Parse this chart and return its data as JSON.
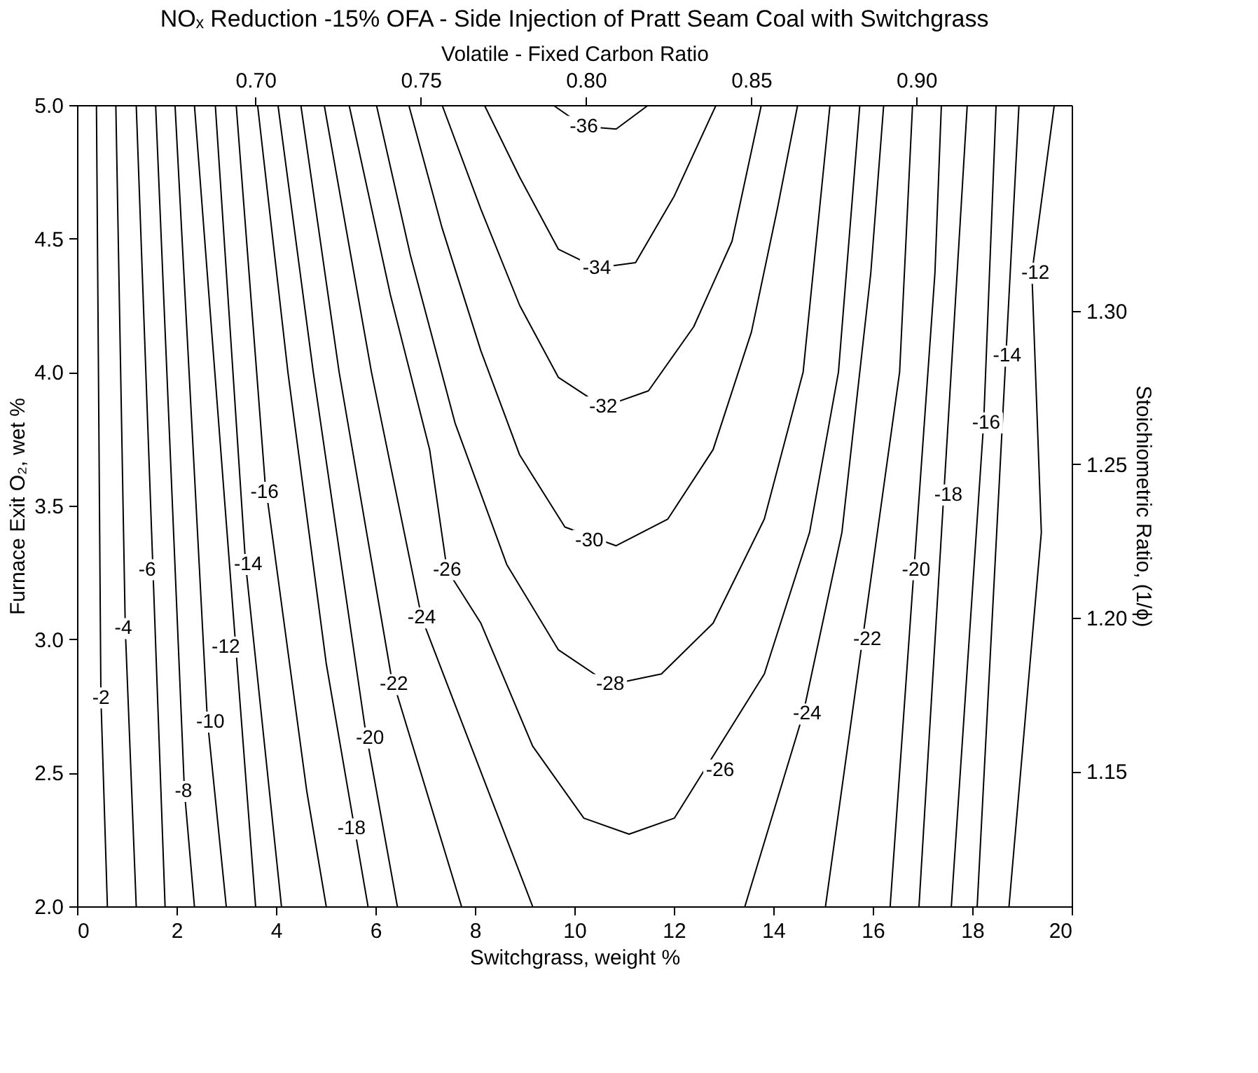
{
  "chart_data": {
    "type": "line",
    "title": "NOₓ Reduction -15% OFA - Side Injection of Pratt Seam Coal with Switchgrass",
    "xlabel": "Switchgrass, weight %",
    "ylabel": "Furnace Exit O₂, wet %",
    "x2label": "Volatile - Fixed Carbon Ratio",
    "y2label": "Stoichiometric Ratio, (1/ϕ)",
    "series": [
      {
        "color": "#000000",
        "x": [
          9.57,
          10.19,
          10.84,
          11.49
        ],
        "values": [
          5.0,
          4.92,
          4.91,
          5.0
        ]
      },
      {
        "color": "#000000",
        "x": [
          8.19,
          8.9,
          9.68,
          10.45,
          11.23,
          12.01,
          12.85
        ],
        "values": [
          5.0,
          4.73,
          4.46,
          4.39,
          4.41,
          4.66,
          5.0
        ]
      },
      {
        "color": "#000000",
        "x": [
          7.34,
          8.12,
          8.9,
          9.68,
          10.58,
          11.49,
          12.4,
          13.17,
          13.76
        ],
        "values": [
          5.0,
          4.61,
          4.25,
          3.98,
          3.87,
          3.93,
          4.17,
          4.49,
          5.0
        ]
      },
      {
        "color": "#000000",
        "x": [
          6.67,
          7.34,
          8.12,
          8.9,
          9.81,
          10.84,
          11.88,
          12.79,
          13.56,
          14.08,
          14.49
        ],
        "values": [
          5.0,
          4.54,
          4.08,
          3.69,
          3.42,
          3.35,
          3.45,
          3.71,
          4.15,
          4.61,
          5.0
        ]
      },
      {
        "color": "#000000",
        "x": [
          6.02,
          6.7,
          7.6,
          8.64,
          9.68,
          10.72,
          11.75,
          12.79,
          13.82,
          14.6,
          15.14
        ],
        "values": [
          5.0,
          4.44,
          3.81,
          3.28,
          2.96,
          2.83,
          2.87,
          3.06,
          3.45,
          4.0,
          5.0
        ]
      },
      {
        "color": "#000000",
        "x": [
          5.47,
          6.3,
          7.09,
          7.44,
          8.12,
          9.16,
          10.19,
          11.1,
          12.01,
          13.82,
          14.73,
          15.31,
          15.74
        ],
        "values": [
          5.0,
          4.29,
          3.71,
          3.26,
          3.06,
          2.6,
          2.33,
          2.27,
          2.33,
          2.87,
          3.4,
          4.0,
          5.0
        ]
      },
      {
        "color": "#000000",
        "x": [
          4.97,
          5.92,
          6.93,
          9.16,
          null,
          13.43,
          14.6,
          15.38,
          15.96,
          16.22
        ],
        "values": [
          5.0,
          4.0,
          3.08,
          2.0,
          null,
          2.0,
          2.72,
          3.4,
          4.37,
          5.0
        ]
      },
      {
        "color": "#000000",
        "x": [
          4.5,
          5.27,
          6.31,
          7.73,
          null,
          15.05,
          16.54,
          16.8
        ],
        "values": [
          5.0,
          4.0,
          2.87,
          2.0,
          null,
          2.0,
          4.0,
          5.0
        ]
      },
      {
        "color": "#000000",
        "x": [
          4.04,
          4.75,
          5.79,
          6.44,
          null,
          16.35,
          17.25,
          17.38
        ],
        "values": [
          5.0,
          4.0,
          2.67,
          2.0,
          null,
          2.0,
          4.37,
          5.0
        ]
      },
      {
        "color": "#000000",
        "x": [
          3.63,
          4.24,
          5.01,
          5.85,
          null,
          16.93,
          17.9
        ],
        "values": [
          5.0,
          4.0,
          2.91,
          2.0,
          null,
          2.0,
          5.0
        ]
      },
      {
        "color": "#000000",
        "x": [
          3.2,
          3.78,
          4.62,
          5.01,
          null,
          17.58,
          18.23,
          18.48
        ],
        "values": [
          5.0,
          3.59,
          2.43,
          2.0,
          null,
          2.0,
          3.81,
          5.0
        ]
      },
      {
        "color": "#000000",
        "x": [
          2.78,
          3.39,
          4.11,
          null,
          18.1,
          18.94
        ],
        "values": [
          5.0,
          3.28,
          2.0,
          null,
          2.0,
          5.0
        ]
      },
      {
        "color": "#000000",
        "x": [
          2.36,
          3.59,
          null,
          18.74,
          19.39,
          19.2,
          19.65
        ],
        "values": [
          5.0,
          2.0,
          null,
          2.0,
          3.4,
          4.37,
          5.0
        ]
      },
      {
        "color": "#000000",
        "x": [
          1.97,
          2.62,
          3.0
        ],
        "values": [
          5.0,
          2.7,
          2.0
        ]
      },
      {
        "color": "#000000",
        "x": [
          1.58,
          2.16,
          2.36
        ],
        "values": [
          5.0,
          2.43,
          2.0
        ]
      },
      {
        "color": "#000000",
        "x": [
          1.19,
          1.77
        ],
        "values": [
          5.0,
          2.0
        ]
      },
      {
        "color": "#000000",
        "x": [
          0.78,
          0.97,
          1.19
        ],
        "values": [
          5.0,
          3.04,
          2.0
        ]
      },
      {
        "color": "#000000",
        "x": [
          0.39,
          0.48,
          0.61
        ],
        "values": [
          5.0,
          2.78,
          2.0
        ]
      }
    ],
    "line_style": "solid",
    "marker": "none",
    "grid": false,
    "xlim": [
      0,
      20
    ],
    "xticks": [
      0,
      2,
      4,
      6,
      8,
      10,
      12,
      14,
      16,
      18,
      20
    ],
    "ylim": [
      2.0,
      5.0
    ],
    "yticks": [
      {
        "value": 2.0,
        "label": "2.0"
      },
      {
        "value": 2.5,
        "label": "2.5"
      },
      {
        "value": 3.0,
        "label": "3.0"
      },
      {
        "value": 3.5,
        "label": "3.5"
      },
      {
        "value": 4.0,
        "label": "4.0"
      },
      {
        "value": 4.5,
        "label": "4.5"
      },
      {
        "value": 5.0,
        "label": "5.0"
      }
    ],
    "x2lim": [
      0.646,
      0.947
    ],
    "x2ticks": [
      {
        "value": 0.7,
        "label": "0.70"
      },
      {
        "value": 0.75,
        "label": "0.75"
      },
      {
        "value": 0.8,
        "label": "0.80"
      },
      {
        "value": 0.85,
        "label": "0.85"
      },
      {
        "value": 0.9,
        "label": "0.90"
      }
    ],
    "y2lim": [
      1.106,
      1.367
    ],
    "y2ticks": [
      1.15,
      {
        "value": 1.2,
        "label": "1.20"
      },
      1.25,
      {
        "value": 1.3,
        "label": "1.30"
      }
    ],
    "annotations": [
      {
        "text": "-36",
        "x": 10.19,
        "y": 4.92
      },
      {
        "text": "-34",
        "x": 10.45,
        "y": 4.39
      },
      {
        "text": "-32",
        "x": 10.58,
        "y": 3.87
      },
      {
        "text": "-30",
        "x": 10.3,
        "y": 3.37
      },
      {
        "text": "-28",
        "x": 10.72,
        "y": 2.83
      },
      {
        "text": "-26",
        "x": 7.44,
        "y": 3.26
      },
      {
        "text": "-26",
        "x": 12.93,
        "y": 2.51
      },
      {
        "text": "-24",
        "x": 6.93,
        "y": 3.08
      },
      {
        "text": "-24",
        "x": 14.68,
        "y": 2.72
      },
      {
        "text": "-22",
        "x": 6.37,
        "y": 2.83
      },
      {
        "text": "-22",
        "x": 15.89,
        "y": 3.0
      },
      {
        "text": "-20",
        "x": 5.89,
        "y": 2.63
      },
      {
        "text": "-20",
        "x": 16.87,
        "y": 3.26
      },
      {
        "text": "-18",
        "x": 5.52,
        "y": 2.29
      },
      {
        "text": "-18",
        "x": 17.52,
        "y": 3.54
      },
      {
        "text": "-16",
        "x": 3.77,
        "y": 3.55
      },
      {
        "text": "-16",
        "x": 18.28,
        "y": 3.81
      },
      {
        "text": "-14",
        "x": 3.44,
        "y": 3.28
      },
      {
        "text": "-14",
        "x": 18.7,
        "y": 4.06
      },
      {
        "text": "-12",
        "x": 2.99,
        "y": 2.97
      },
      {
        "text": "-12",
        "x": 19.27,
        "y": 4.37
      },
      {
        "text": "-10",
        "x": 2.68,
        "y": 2.69
      },
      {
        "text": "-8",
        "x": 2.14,
        "y": 2.43
      },
      {
        "text": "-6",
        "x": 1.41,
        "y": 3.26
      },
      {
        "text": "-4",
        "x": 0.93,
        "y": 3.04
      },
      {
        "text": "-2",
        "x": 0.48,
        "y": 2.78
      }
    ]
  }
}
